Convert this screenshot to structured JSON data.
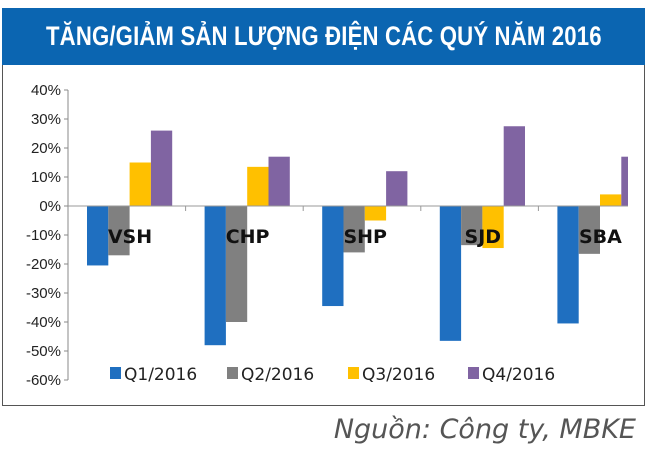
{
  "title": "TĂNG/GIẢM SẢN LƯỢNG ĐIỆN CÁC QUÝ NĂM 2016",
  "source": "Nguồn: Công ty, MBKE",
  "chart_data": {
    "type": "bar",
    "title": "TĂNG/GIẢM SẢN LƯỢNG ĐIỆN CÁC QUÝ NĂM 2016",
    "categories": [
      "VSH",
      "CHP",
      "SHP",
      "SJD",
      "SBA"
    ],
    "series": [
      {
        "name": "Q1/2016",
        "color": "#1f6fc0",
        "values": [
          -20.5,
          -48,
          -34.5,
          -46.5,
          -40.5
        ]
      },
      {
        "name": "Q2/2016",
        "color": "#808080",
        "values": [
          -17,
          -40,
          -16,
          -13.5,
          -16.5
        ]
      },
      {
        "name": "Q3/2016",
        "color": "#ffc000",
        "values": [
          15,
          13.5,
          -5,
          -14.5,
          4
        ]
      },
      {
        "name": "Q4/2016",
        "color": "#8064a2",
        "values": [
          26,
          17,
          12,
          27.5,
          17
        ]
      }
    ],
    "yticks": [
      "40%",
      "30%",
      "20%",
      "10%",
      "0%",
      "-10%",
      "-20%",
      "-30%",
      "-40%",
      "-50%",
      "-60%"
    ],
    "ylim": [
      -60,
      40
    ],
    "unit": "%",
    "grid": false,
    "legend": "bottom"
  }
}
